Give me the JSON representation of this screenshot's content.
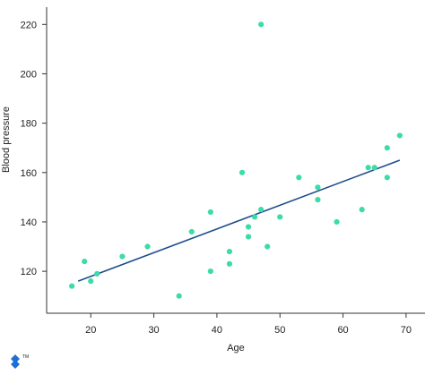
{
  "chart_data": {
    "type": "scatter",
    "title": "",
    "xlabel": "Age",
    "ylabel": "Blood pressure",
    "xlim": [
      13,
      73
    ],
    "ylim": [
      103,
      227
    ],
    "x_ticks": [
      20,
      30,
      40,
      50,
      60,
      70
    ],
    "y_ticks": [
      120,
      140,
      160,
      180,
      200,
      220
    ],
    "grid": false,
    "legend": "none",
    "points": [
      {
        "x": 17,
        "y": 114
      },
      {
        "x": 19,
        "y": 124
      },
      {
        "x": 20,
        "y": 116
      },
      {
        "x": 21,
        "y": 119
      },
      {
        "x": 25,
        "y": 126
      },
      {
        "x": 29,
        "y": 130
      },
      {
        "x": 34,
        "y": 110
      },
      {
        "x": 36,
        "y": 136
      },
      {
        "x": 39,
        "y": 144
      },
      {
        "x": 39,
        "y": 120
      },
      {
        "x": 42,
        "y": 128
      },
      {
        "x": 42,
        "y": 123
      },
      {
        "x": 44,
        "y": 160
      },
      {
        "x": 45,
        "y": 138
      },
      {
        "x": 45,
        "y": 134
      },
      {
        "x": 46,
        "y": 142
      },
      {
        "x": 47,
        "y": 145
      },
      {
        "x": 47,
        "y": 220
      },
      {
        "x": 48,
        "y": 130
      },
      {
        "x": 50,
        "y": 142
      },
      {
        "x": 53,
        "y": 158
      },
      {
        "x": 56,
        "y": 154
      },
      {
        "x": 56,
        "y": 149
      },
      {
        "x": 59,
        "y": 140
      },
      {
        "x": 63,
        "y": 145
      },
      {
        "x": 64,
        "y": 162
      },
      {
        "x": 65,
        "y": 162
      },
      {
        "x": 67,
        "y": 170
      },
      {
        "x": 67,
        "y": 158
      },
      {
        "x": 69,
        "y": 175
      }
    ],
    "trendline": {
      "x1": 18,
      "y1": 116,
      "x2": 69,
      "y2": 165
    },
    "colors": {
      "points": "#3ddba9",
      "trendline": "#1f4e8c",
      "axes": "#333333",
      "logo": "#1d6fd6"
    }
  },
  "logo": {
    "icon": "toptal-logo-icon",
    "trademark": "TM"
  }
}
